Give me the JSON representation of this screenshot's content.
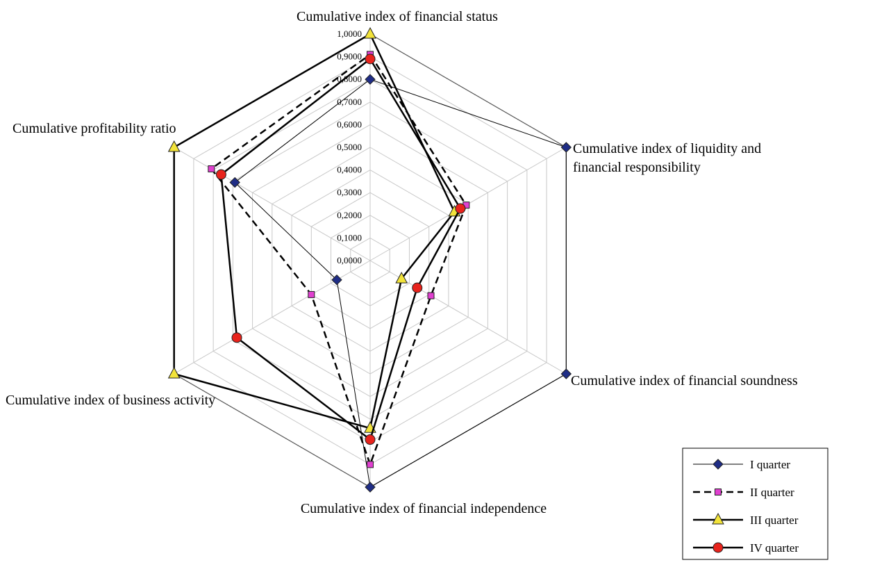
{
  "chart_data": {
    "type": "radar",
    "axes": [
      "Cumulative index of financial status",
      "Cumulative index of liquidity and financial responsibility",
      "Cumulative index of financial soundness",
      "Cumulative index of financial independence",
      "Cumulative index of business activity",
      "Cumulative  profitability ratio"
    ],
    "axis_label_lines": [
      [
        "Cumulative index of financial status"
      ],
      [
        "Cumulative index of liquidity and",
        "financial responsibility"
      ],
      [
        "Cumulative index of financial soundness"
      ],
      [
        "Cumulative index of financial independence"
      ],
      [
        "Cumulative index of business activity"
      ],
      [
        "Cumulative  profitability ratio"
      ]
    ],
    "range": [
      0,
      1
    ],
    "tick_values": [
      0,
      0.1,
      0.2,
      0.3,
      0.4,
      0.5,
      0.6,
      0.7,
      0.8,
      0.9,
      1.0
    ],
    "tick_labels": [
      "0,0000",
      "0,1000",
      "0,2000",
      "0,3000",
      "0,4000",
      "0,5000",
      "0,6000",
      "0,7000",
      "0,8000",
      "0,9000",
      "1,0000"
    ],
    "grid": true,
    "legend_position": "bottom-right",
    "series": [
      {
        "name": "I quarter",
        "values": [
          0.8,
          1.0,
          1.0,
          1.0,
          0.17,
          0.69
        ],
        "color": "#1f2d86",
        "marker": "diamond",
        "line": "thin"
      },
      {
        "name": "II quarter",
        "values": [
          0.91,
          0.49,
          0.31,
          0.9,
          0.3,
          0.81
        ],
        "color": "#e040d0",
        "marker": "square",
        "line": "dashed"
      },
      {
        "name": "III quarter",
        "values": [
          1.0,
          0.43,
          0.16,
          0.74,
          1.0,
          1.0
        ],
        "color": "#f2e33a",
        "marker": "triangle",
        "line": "solid"
      },
      {
        "name": "IV quarter",
        "values": [
          0.89,
          0.46,
          0.24,
          0.79,
          0.68,
          0.76
        ],
        "color": "#e8231c",
        "marker": "circle",
        "line": "solid"
      }
    ]
  }
}
